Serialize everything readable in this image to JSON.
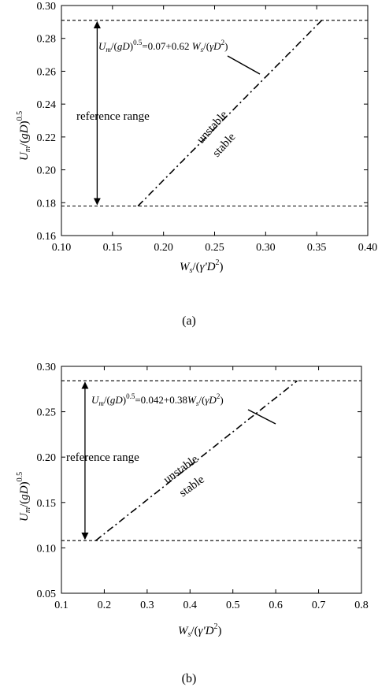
{
  "chart_data": [
    {
      "type": "line",
      "panel_label": "(a)",
      "xlabel": "W_s/(γ'D^2)",
      "ylabel": "U_m/(gD)^0.5",
      "xlim": [
        0.1,
        0.4
      ],
      "ylim": [
        0.16,
        0.3
      ],
      "xticks": [
        0.1,
        0.15,
        0.2,
        0.25,
        0.3,
        0.35,
        0.4
      ],
      "xtick_labels": [
        "0.10",
        "0.15",
        "0.20",
        "0.25",
        "0.30",
        "0.35",
        "0.40"
      ],
      "yticks": [
        0.16,
        0.18,
        0.2,
        0.22,
        0.24,
        0.26,
        0.28,
        0.3
      ],
      "ytick_labels": [
        "0.16",
        "0.18",
        "0.20",
        "0.22",
        "0.24",
        "0.26",
        "0.28",
        "0.30"
      ],
      "grid": false,
      "series": [
        {
          "role": "upper-limit",
          "style": "dashed",
          "x": [
            0.1,
            0.4
          ],
          "y": [
            0.291,
            0.291
          ]
        },
        {
          "role": "lower-limit",
          "style": "dashed",
          "x": [
            0.1,
            0.4
          ],
          "y": [
            0.178,
            0.178
          ]
        },
        {
          "role": "boundary",
          "style": "dash-dot",
          "x": [
            0.175,
            0.355
          ],
          "y": [
            0.178,
            0.291
          ]
        }
      ],
      "range_arrow": {
        "x": 0.135,
        "y_from": 0.178,
        "y_to": 0.291
      },
      "annotations": {
        "equation": "=0.07+0.62",
        "range_label": "reference range",
        "unstable_label": "unstable",
        "stable_label": "stable"
      }
    },
    {
      "type": "line",
      "panel_label": "(b)",
      "xlabel": "W_s/(γ'D^2)",
      "ylabel": "U_m/(gD)^0.5",
      "xlim": [
        0.1,
        0.8
      ],
      "ylim": [
        0.05,
        0.3
      ],
      "xticks": [
        0.1,
        0.2,
        0.3,
        0.4,
        0.5,
        0.6,
        0.7,
        0.8
      ],
      "xtick_labels": [
        "0.1",
        "0.2",
        "0.3",
        "0.4",
        "0.5",
        "0.6",
        "0.7",
        "0.8"
      ],
      "yticks": [
        0.05,
        0.1,
        0.15,
        0.2,
        0.25,
        0.3
      ],
      "ytick_labels": [
        "0.05",
        "0.10",
        "0.15",
        "0.20",
        "0.25",
        "0.30"
      ],
      "grid": false,
      "series": [
        {
          "role": "upper-limit",
          "style": "dashed",
          "x": [
            0.1,
            0.8
          ],
          "y": [
            0.284,
            0.284
          ]
        },
        {
          "role": "lower-limit",
          "style": "dashed",
          "x": [
            0.1,
            0.8
          ],
          "y": [
            0.108,
            0.108
          ]
        },
        {
          "role": "boundary",
          "style": "dash-dot",
          "x": [
            0.18,
            0.65
          ],
          "y": [
            0.108,
            0.284
          ]
        }
      ],
      "range_arrow": {
        "x": 0.155,
        "y_from": 0.108,
        "y_to": 0.284
      },
      "annotations": {
        "equation": "=0.042+0.38",
        "range_label": "reference range",
        "unstable_label": "unstable",
        "stable_label": "stable"
      }
    }
  ]
}
